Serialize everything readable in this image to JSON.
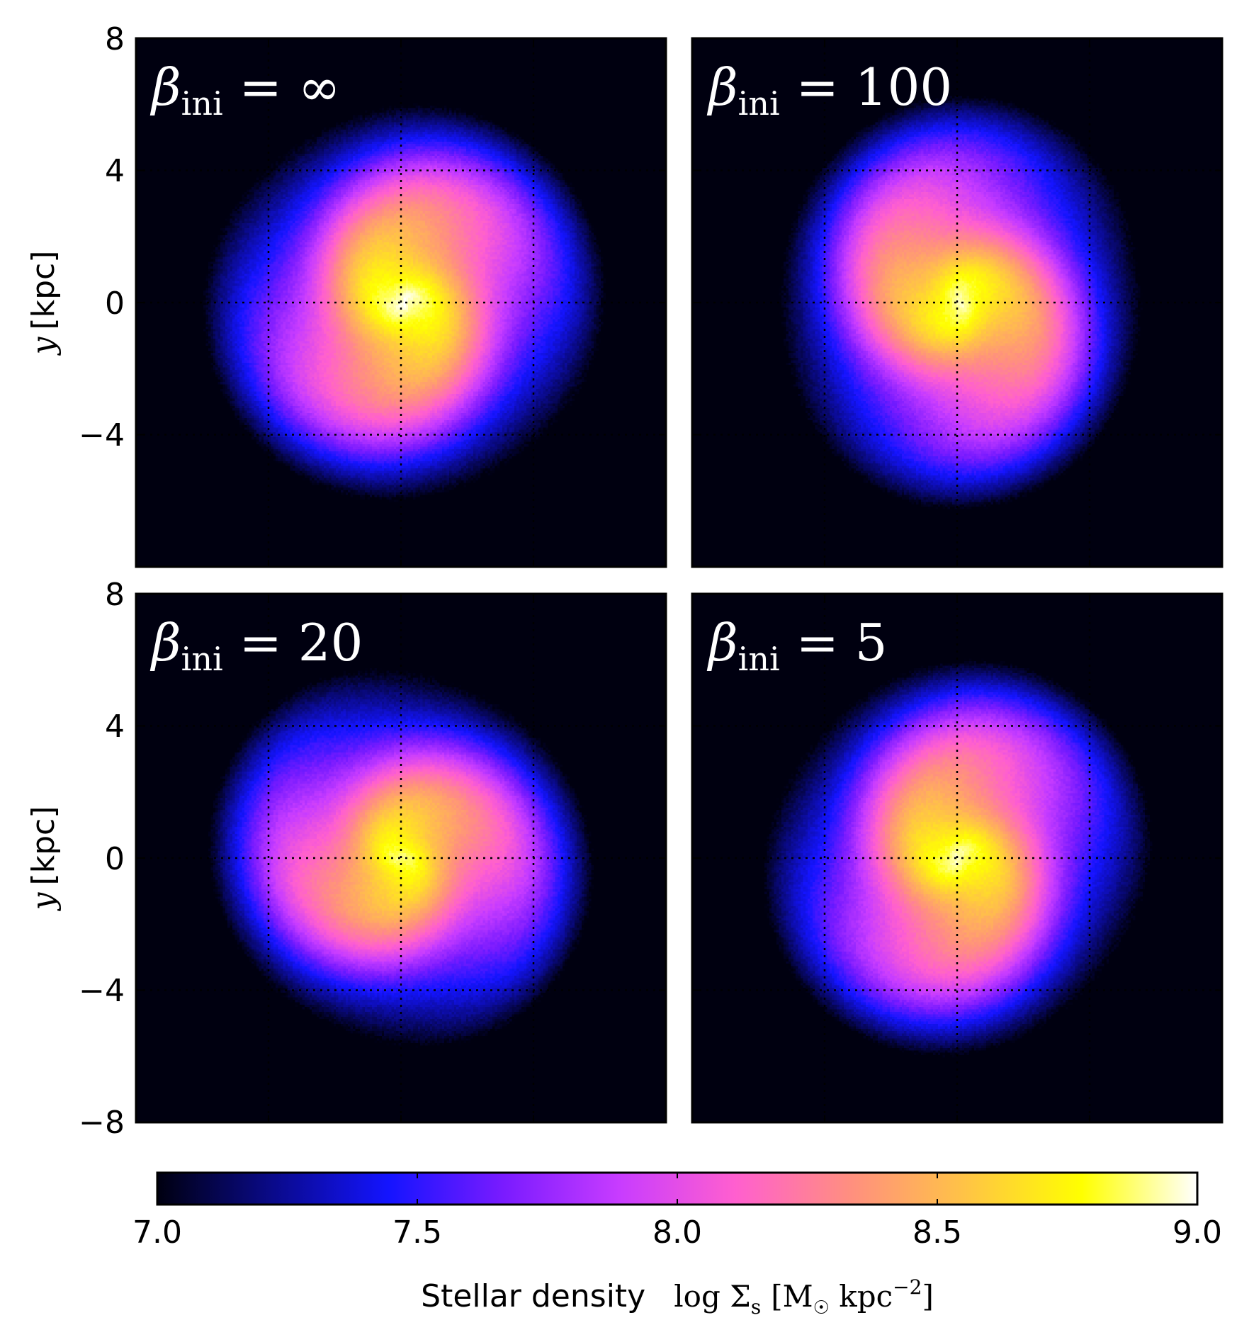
{
  "chart_data": [
    {
      "type": "heatmap",
      "panel_label": {
        "symbol": "β",
        "subscript": "ini",
        "value": "∞"
      },
      "ylabel": {
        "var": "y",
        "unit": "[kpc]"
      },
      "xlim": [
        -8,
        8
      ],
      "ylim": [
        -8,
        8
      ],
      "yticks": [
        "8",
        "4",
        "0",
        "−4"
      ],
      "grid": true,
      "disk": {
        "center": [
          0.1,
          0.0
        ],
        "arm_phase": 0.2,
        "peak": 9.0
      }
    },
    {
      "type": "heatmap",
      "panel_label": {
        "symbol": "β",
        "subscript": "ini",
        "value": "100"
      },
      "xlim": [
        -8,
        8
      ],
      "ylim": [
        -8,
        8
      ],
      "grid": true,
      "disk": {
        "center": [
          0.1,
          0.0
        ],
        "arm_phase": 1.3,
        "peak": 8.95
      }
    },
    {
      "type": "heatmap",
      "panel_label": {
        "symbol": "β",
        "subscript": "ini",
        "value": "20"
      },
      "ylabel": {
        "var": "y",
        "unit": "[kpc]"
      },
      "xlim": [
        -8,
        8
      ],
      "ylim": [
        -8,
        8
      ],
      "yticks": [
        "8",
        "4",
        "0",
        "−4",
        "−8"
      ],
      "grid": true,
      "disk": {
        "center": [
          0.0,
          0.0
        ],
        "arm_phase": 2.4,
        "peak": 8.9
      }
    },
    {
      "type": "heatmap",
      "panel_label": {
        "symbol": "β",
        "subscript": "ini",
        "value": "5"
      },
      "xlim": [
        -8,
        8
      ],
      "ylim": [
        -8,
        8
      ],
      "grid": true,
      "disk": {
        "center": [
          0.0,
          0.0
        ],
        "arm_phase": 3.6,
        "peak": 8.95
      }
    }
  ],
  "colorbar": {
    "range": [
      7.0,
      9.0
    ],
    "ticks": [
      "7.0",
      "7.5",
      "8.0",
      "8.5",
      "9.0"
    ],
    "label_text": "Stellar density",
    "label_math": {
      "prefix": "log Σ",
      "sub": "s",
      "bracket_open": "[M",
      "sun_sub": "☉",
      "middle": " kpc",
      "sup": "−2",
      "bracket_close": "]"
    },
    "colors": [
      "#000010",
      "#0a0a8a",
      "#1414ff",
      "#7a1bff",
      "#c83cff",
      "#ff5fcf",
      "#ff8f7f",
      "#ffc445",
      "#ffff00",
      "#ffffff"
    ]
  }
}
